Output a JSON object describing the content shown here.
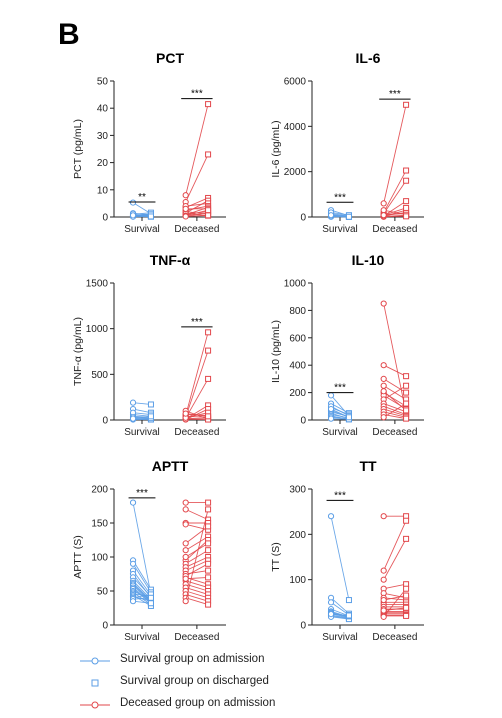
{
  "panel_letter": "B",
  "colors": {
    "survival": "#5b9ee6",
    "deceased": "#e2474b",
    "axis": "#222222"
  },
  "legend": [
    {
      "label": "Survival group on admission",
      "marker": "circle",
      "color": "#5b9ee6",
      "line": true
    },
    {
      "label": "Survival group on discharged",
      "marker": "square",
      "color": "#5b9ee6",
      "line": false
    },
    {
      "label": "Deceased group on admission",
      "marker": "circle",
      "color": "#e2474b",
      "line": true
    }
  ],
  "chart_data": [
    {
      "type": "scatter",
      "title": "PCT",
      "ylabel": "PCT (pg/mL)",
      "ylim": [
        0,
        50
      ],
      "yticks": [
        0,
        10,
        20,
        30,
        40,
        50
      ],
      "categories": [
        "Survival",
        "Deceased"
      ],
      "significance": [
        {
          "group": "Survival",
          "label": "**",
          "y": 5.5
        },
        {
          "group": "Deceased",
          "label": "***",
          "y": 43.5
        }
      ],
      "survival_pairs": [
        [
          5.3,
          1.2
        ],
        [
          1.4,
          0.6
        ],
        [
          1.0,
          1.6
        ],
        [
          0.7,
          0.4
        ],
        [
          0.5,
          1.0
        ],
        [
          0.3,
          0.2
        ],
        [
          0.2,
          0.8
        ],
        [
          0.8,
          0.3
        ],
        [
          0.4,
          0.5
        ],
        [
          0.1,
          0.1
        ],
        [
          1.2,
          0.9
        ],
        [
          0.6,
          0.2
        ]
      ],
      "deceased_pairs": [
        [
          8.0,
          41.5
        ],
        [
          5.5,
          23.0
        ],
        [
          3.5,
          7.0
        ],
        [
          1.5,
          6.0
        ],
        [
          4.0,
          5.0
        ],
        [
          2.5,
          4.0
        ],
        [
          0.8,
          3.5
        ],
        [
          1.0,
          2.0
        ],
        [
          0.3,
          1.5
        ],
        [
          2.0,
          1.0
        ],
        [
          1.2,
          0.5
        ],
        [
          3.0,
          3.0
        ],
        [
          0.5,
          2.5
        ],
        [
          0.2,
          0.6
        ]
      ]
    },
    {
      "type": "scatter",
      "title": "IL-6",
      "ylabel": "IL-6 (pg/mL)",
      "ylim": [
        0,
        6000
      ],
      "yticks": [
        0,
        2000,
        4000,
        6000
      ],
      "categories": [
        "Survival",
        "Deceased"
      ],
      "significance": [
        {
          "group": "Survival",
          "label": "***",
          "y": 650
        },
        {
          "group": "Deceased",
          "label": "***",
          "y": 5200
        }
      ],
      "survival_pairs": [
        [
          300,
          60
        ],
        [
          150,
          40
        ],
        [
          100,
          30
        ],
        [
          50,
          20
        ],
        [
          30,
          15
        ],
        [
          20,
          10
        ],
        [
          10,
          5
        ],
        [
          60,
          25
        ],
        [
          200,
          80
        ],
        [
          80,
          10
        ]
      ],
      "deceased_pairs": [
        [
          600,
          4950
        ],
        [
          200,
          2050
        ],
        [
          150,
          1600
        ],
        [
          50,
          700
        ],
        [
          30,
          300
        ],
        [
          100,
          150
        ],
        [
          20,
          80
        ],
        [
          10,
          50
        ],
        [
          60,
          200
        ],
        [
          300,
          100
        ],
        [
          40,
          30
        ],
        [
          80,
          400
        ]
      ]
    },
    {
      "type": "scatter",
      "title": "TNF-α",
      "ylabel": "TNF-α (pg/mL)",
      "ylim": [
        0,
        1500
      ],
      "yticks": [
        0,
        500,
        1000,
        1500
      ],
      "categories": [
        "Survival",
        "Deceased"
      ],
      "significance": [
        {
          "group": "Deceased",
          "label": "***",
          "y": 1020
        }
      ],
      "survival_pairs": [
        [
          190,
          170
        ],
        [
          120,
          80
        ],
        [
          60,
          40
        ],
        [
          40,
          30
        ],
        [
          20,
          15
        ],
        [
          10,
          10
        ],
        [
          5,
          5
        ],
        [
          80,
          60
        ],
        [
          30,
          20
        ],
        [
          15,
          40
        ]
      ],
      "deceased_pairs": [
        [
          50,
          960
        ],
        [
          30,
          760
        ],
        [
          20,
          450
        ],
        [
          10,
          160
        ],
        [
          5,
          120
        ],
        [
          60,
          50
        ],
        [
          40,
          30
        ],
        [
          15,
          20
        ],
        [
          100,
          10
        ],
        [
          8,
          5
        ],
        [
          25,
          80
        ],
        [
          70,
          40
        ]
      ]
    },
    {
      "type": "scatter",
      "title": "IL-10",
      "ylabel": "IL-10 (pg/mL)",
      "ylim": [
        0,
        1000
      ],
      "yticks": [
        0,
        200,
        400,
        600,
        800,
        1000
      ],
      "categories": [
        "Survival",
        "Deceased"
      ],
      "significance": [
        {
          "group": "Survival",
          "label": "***",
          "y": 200
        }
      ],
      "survival_pairs": [
        [
          180,
          30
        ],
        [
          120,
          50
        ],
        [
          90,
          40
        ],
        [
          70,
          20
        ],
        [
          60,
          25
        ],
        [
          50,
          10
        ],
        [
          40,
          15
        ],
        [
          30,
          5
        ],
        [
          20,
          10
        ],
        [
          10,
          5
        ],
        [
          100,
          30
        ],
        [
          80,
          20
        ]
      ],
      "deceased_pairs": [
        [
          850,
          50
        ],
        [
          400,
          320
        ],
        [
          300,
          200
        ],
        [
          250,
          150
        ],
        [
          200,
          100
        ],
        [
          180,
          80
        ],
        [
          150,
          250
        ],
        [
          120,
          60
        ],
        [
          100,
          40
        ],
        [
          80,
          30
        ],
        [
          60,
          20
        ],
        [
          40,
          10
        ],
        [
          20,
          120
        ],
        [
          210,
          70
        ]
      ]
    },
    {
      "type": "scatter",
      "title": "APTT",
      "ylabel": "APTT (S)",
      "ylim": [
        0,
        200
      ],
      "yticks": [
        0,
        50,
        100,
        150,
        200
      ],
      "categories": [
        "Survival",
        "Deceased"
      ],
      "significance": [
        {
          "group": "Survival",
          "label": "***",
          "y": 187
        }
      ],
      "survival_pairs": [
        [
          180,
          45
        ],
        [
          95,
          52
        ],
        [
          90,
          48
        ],
        [
          80,
          44
        ],
        [
          75,
          40
        ],
        [
          70,
          42
        ],
        [
          65,
          38
        ],
        [
          62,
          36
        ],
        [
          60,
          35
        ],
        [
          58,
          34
        ],
        [
          55,
          33
        ],
        [
          53,
          32
        ],
        [
          50,
          38
        ],
        [
          48,
          30
        ],
        [
          46,
          42
        ],
        [
          44,
          28
        ],
        [
          42,
          35
        ],
        [
          40,
          45
        ],
        [
          38,
          40
        ],
        [
          35,
          32
        ]
      ],
      "deceased_pairs": [
        [
          180,
          180
        ],
        [
          170,
          155
        ],
        [
          150,
          150
        ],
        [
          148,
          140
        ],
        [
          120,
          145
        ],
        [
          110,
          130
        ],
        [
          95,
          125
        ],
        [
          90,
          110
        ],
        [
          85,
          100
        ],
        [
          80,
          95
        ],
        [
          75,
          80
        ],
        [
          70,
          60
        ],
        [
          65,
          55
        ],
        [
          60,
          50
        ],
        [
          55,
          45
        ],
        [
          50,
          40
        ],
        [
          45,
          35
        ],
        [
          40,
          30
        ],
        [
          35,
          170
        ],
        [
          100,
          120
        ],
        [
          72,
          90
        ],
        [
          68,
          70
        ]
      ]
    },
    {
      "type": "scatter",
      "title": "TT",
      "ylabel": "TT (S)",
      "ylim": [
        0,
        300
      ],
      "yticks": [
        0,
        100,
        200,
        300
      ],
      "categories": [
        "Survival",
        "Deceased"
      ],
      "significance": [
        {
          "group": "Survival",
          "label": "***",
          "y": 275
        }
      ],
      "survival_pairs": [
        [
          240,
          55
        ],
        [
          60,
          25
        ],
        [
          50,
          22
        ],
        [
          35,
          20
        ],
        [
          30,
          18
        ],
        [
          28,
          17
        ],
        [
          25,
          16
        ],
        [
          22,
          15
        ],
        [
          20,
          14
        ],
        [
          18,
          13
        ],
        [
          26,
          19
        ],
        [
          24,
          21
        ]
      ],
      "deceased_pairs": [
        [
          240,
          240
        ],
        [
          120,
          230
        ],
        [
          100,
          190
        ],
        [
          80,
          90
        ],
        [
          70,
          60
        ],
        [
          60,
          55
        ],
        [
          50,
          50
        ],
        [
          45,
          45
        ],
        [
          40,
          40
        ],
        [
          35,
          35
        ],
        [
          30,
          30
        ],
        [
          28,
          28
        ],
        [
          25,
          25
        ],
        [
          22,
          22
        ],
        [
          20,
          20
        ],
        [
          18,
          80
        ],
        [
          55,
          65
        ],
        [
          32,
          38
        ]
      ]
    }
  ]
}
